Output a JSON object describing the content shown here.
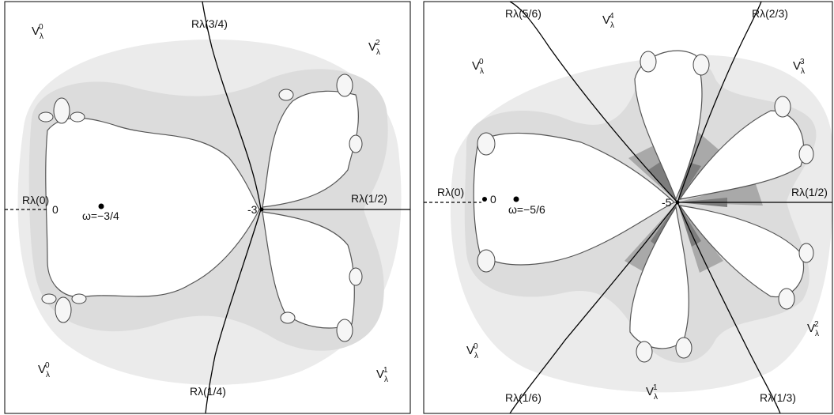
{
  "left_panel": {
    "regions": {
      "v0_top": {
        "base": "V",
        "sub": "λ",
        "sup": "0"
      },
      "v2": {
        "base": "V",
        "sub": "λ",
        "sup": "2"
      },
      "v0_bottom": {
        "base": "V",
        "sub": "λ",
        "sup": "0"
      },
      "v1": {
        "base": "V",
        "sub": "λ",
        "sup": "1"
      }
    },
    "rays": {
      "r0": "Rλ(0)",
      "r34": "Rλ(3/4)",
      "r12": "Rλ(1/2)",
      "r14": "Rλ(1/4)"
    },
    "points": {
      "zero": "0",
      "minus3": "-3",
      "omega": "ω=−3/4"
    }
  },
  "right_panel": {
    "regions": {
      "v0_top": {
        "base": "V",
        "sub": "λ",
        "sup": "0"
      },
      "v4": {
        "base": "V",
        "sub": "λ",
        "sup": "4"
      },
      "v3": {
        "base": "V",
        "sub": "λ",
        "sup": "3"
      },
      "v2": {
        "base": "V",
        "sub": "λ",
        "sup": "2"
      },
      "v0_bottom": {
        "base": "V",
        "sub": "λ",
        "sup": "0"
      },
      "v1": {
        "base": "V",
        "sub": "λ",
        "sup": "1"
      }
    },
    "rays": {
      "r0": "Rλ(0)",
      "r56": "Rλ(5/6)",
      "r23": "Rλ(2/3)",
      "r12": "Rλ(1/2)",
      "r16": "Rλ(1/6)",
      "r13": "Rλ(1/3)"
    },
    "points": {
      "zero": "0",
      "minus5": "-5",
      "omega": "ω=−5/6"
    }
  },
  "colors": {
    "shade1": "#ebebeb",
    "shade2": "#dcdcdc",
    "shade3": "#c8c8c8",
    "shade4": "#a9a9a9",
    "shade5": "#7d7d7d"
  }
}
